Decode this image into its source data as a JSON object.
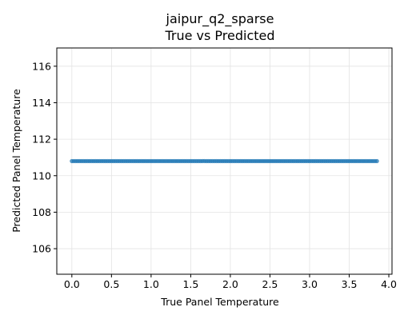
{
  "chart_data": {
    "type": "scatter",
    "title": "jaipur_q2_sparse",
    "subtitle": "True vs Predicted",
    "xlabel": "True Panel Temperature",
    "ylabel": "Predicted Panel Temperature",
    "xlim": [
      -0.19,
      4.04
    ],
    "ylim": [
      104.6,
      117.0
    ],
    "xticks": [
      0.0,
      0.5,
      1.0,
      1.5,
      2.0,
      2.5,
      3.0,
      3.5,
      4.0
    ],
    "xtick_labels": [
      "0.0",
      "0.5",
      "1.0",
      "1.5",
      "2.0",
      "2.5",
      "3.0",
      "3.5",
      "4.0"
    ],
    "yticks": [
      106,
      108,
      110,
      112,
      114,
      116
    ],
    "ytick_labels": [
      "106",
      "108",
      "110",
      "112",
      "114",
      "116"
    ],
    "grid": true,
    "point_color": "#1f77b4",
    "predicted_value": 110.8,
    "x_range": [
      0.0,
      3.85
    ],
    "x_step": 0.025
  }
}
